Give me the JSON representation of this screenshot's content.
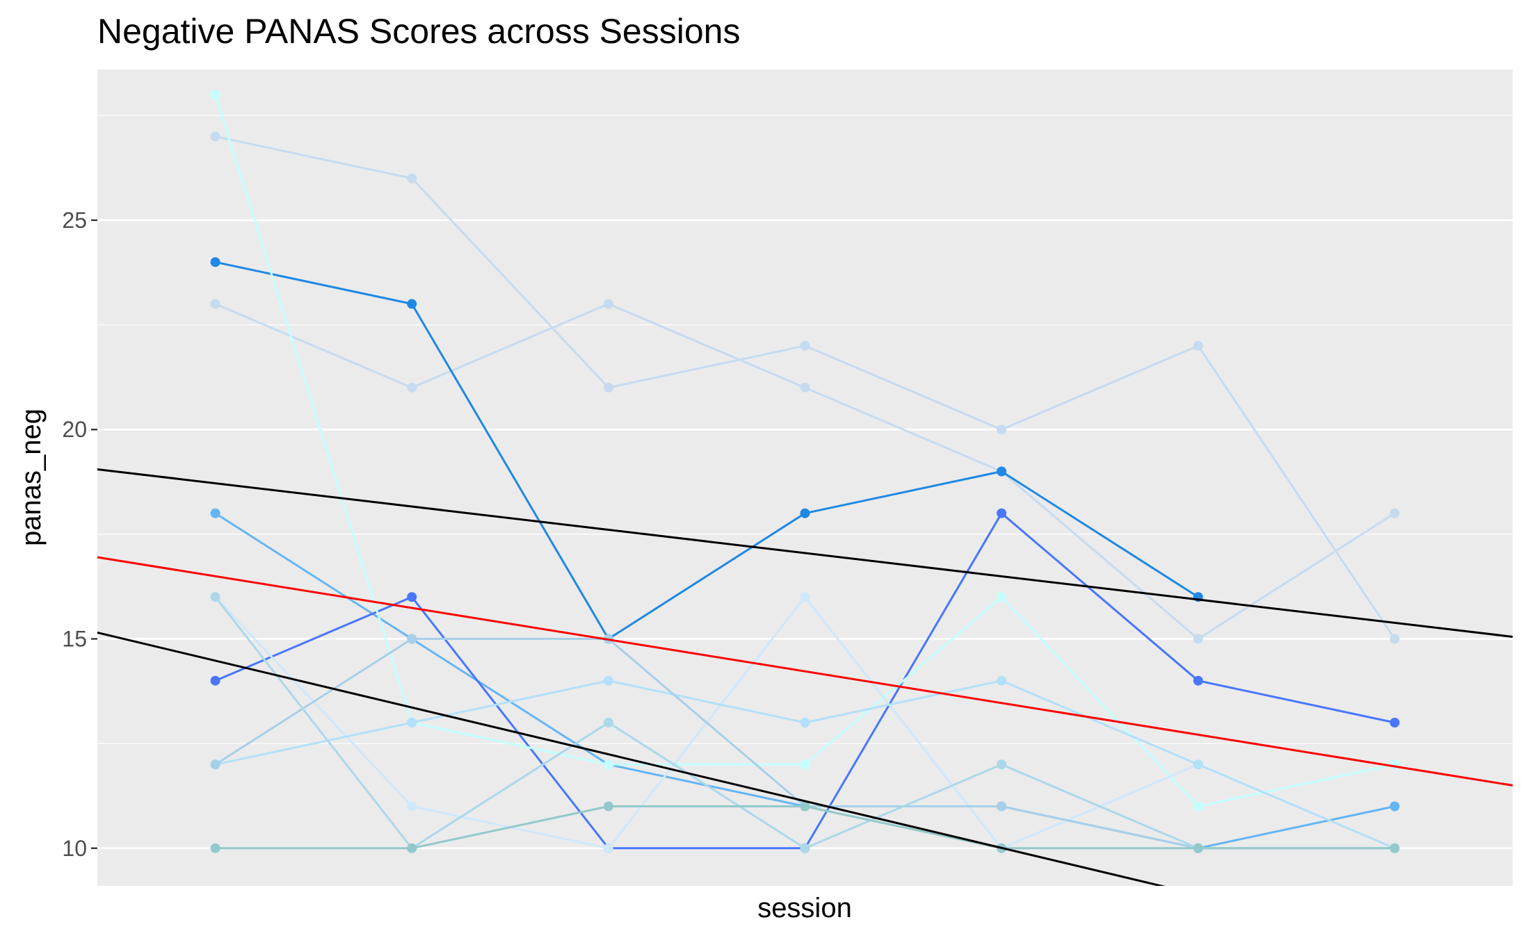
{
  "chart_data": {
    "type": "line",
    "title": "Negative PANAS Scores across Sessions",
    "xlabel": "session",
    "ylabel": "panas_neg",
    "x": [
      1,
      2,
      3,
      4,
      5,
      6,
      7
    ],
    "xlim": [
      0.4,
      7.6
    ],
    "ylim": [
      9.1,
      28.6
    ],
    "yticks": [
      10,
      15,
      20,
      25
    ],
    "grid": true,
    "legend": "none",
    "background": "#ebebeb",
    "series": [
      {
        "color": "#c6dbef",
        "values": [
          27,
          26,
          21,
          22,
          20,
          22,
          15
        ]
      },
      {
        "color": "#c6dbef",
        "values": [
          23,
          21,
          23,
          21,
          19,
          15,
          18
        ]
      },
      {
        "color": "#1e88e5",
        "values": [
          24,
          23,
          15,
          18,
          19,
          16,
          null
        ]
      },
      {
        "color": "#64b5f6",
        "values": [
          18,
          15,
          12,
          11,
          11,
          10,
          11
        ]
      },
      {
        "color": "#4876ff",
        "values": [
          14,
          16,
          10,
          10,
          18,
          14,
          13
        ]
      },
      {
        "color": "#c4ffff",
        "values": [
          28,
          13,
          12,
          12,
          16,
          11,
          12
        ]
      },
      {
        "color": "#cfe8fc",
        "values": [
          16,
          11,
          10,
          16,
          10,
          12,
          10
        ]
      },
      {
        "color": "#b3e0fa",
        "values": [
          12,
          13,
          14,
          13,
          14,
          12,
          10
        ]
      },
      {
        "color": "#a8cfe8",
        "values": [
          12,
          15,
          15,
          11,
          11,
          10,
          10
        ]
      },
      {
        "color": "#acd8ea",
        "values": [
          16,
          10,
          13,
          10,
          12,
          10,
          10
        ]
      },
      {
        "color": "#93c9cb",
        "values": [
          10,
          10,
          11,
          11,
          10,
          10,
          10
        ]
      }
    ],
    "reference_lines": [
      {
        "color": "#000000",
        "start": [
          0.4,
          19.05
        ],
        "end": [
          7.6,
          15.05
        ]
      },
      {
        "color": "#ff0000",
        "start": [
          0.4,
          16.95
        ],
        "end": [
          7.6,
          11.5
        ]
      },
      {
        "color": "#000000",
        "start": [
          0.4,
          15.15
        ],
        "end": [
          7.6,
          7.1
        ]
      }
    ]
  }
}
